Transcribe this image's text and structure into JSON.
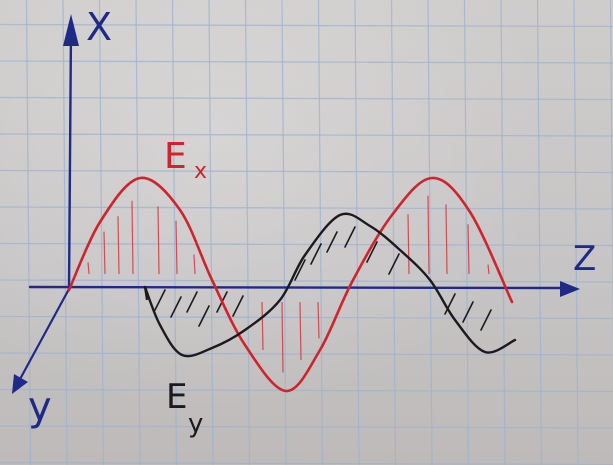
{
  "labels": {
    "x_axis": "X",
    "z_axis": "Z",
    "y_axis": "y",
    "ex_main": "E",
    "ex_sub": "x",
    "ey_main": "E",
    "ey_sub": "y"
  },
  "colors": {
    "paper": "#cbc9c8",
    "grid": "#9fb3cf",
    "axis": "#1f2a86",
    "ex_wave": "#d0242c",
    "ey_wave": "#1c1a1c"
  }
}
